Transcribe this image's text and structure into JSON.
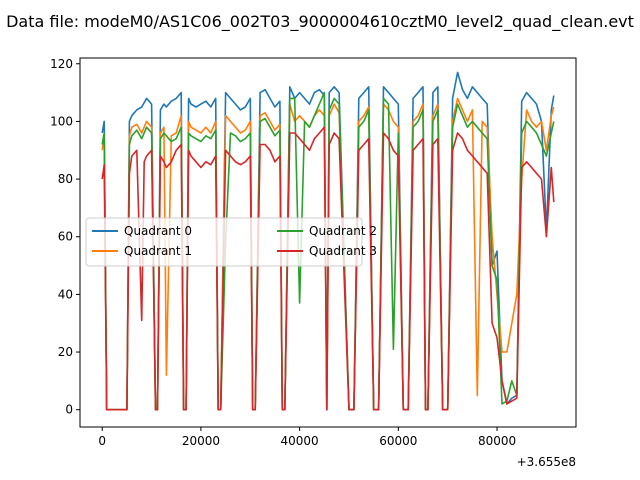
{
  "chart_data": {
    "type": "line",
    "title": "Data file: modeM0/AS1C06_002T03_9000004610cztM0_level2_quad_clean.evt",
    "xlabel": "",
    "ylabel": "",
    "x_offset_label": "+3.655e8",
    "xlim": [
      -4500,
      96000
    ],
    "ylim": [
      -6,
      122
    ],
    "x_ticks": [
      0,
      20000,
      40000,
      60000,
      80000
    ],
    "x_tick_labels": [
      "0",
      "20000",
      "40000",
      "60000",
      "80000"
    ],
    "y_ticks": [
      0,
      20,
      40,
      60,
      80,
      100,
      120
    ],
    "y_tick_labels": [
      "0",
      "20",
      "40",
      "60",
      "80",
      "100",
      "120"
    ],
    "grid": false,
    "legend_position": "center-left",
    "legend_columns": 2,
    "series": [
      {
        "name": "Quadrant 0",
        "color": "#1f77b4",
        "x": [
          0,
          400,
          900,
          5000,
          5500,
          6000,
          7000,
          8000,
          9000,
          10000,
          10800,
          11200,
          11800,
          12500,
          13000,
          14000,
          15000,
          16000,
          16500,
          17000,
          17500,
          18000,
          19000,
          20000,
          21000,
          22000,
          23000,
          23500,
          24000,
          25000,
          26000,
          27000,
          28000,
          29000,
          30000,
          30500,
          31000,
          32000,
          33000,
          34000,
          35000,
          36000,
          36500,
          37000,
          38000,
          39000,
          40000,
          41000,
          42000,
          43000,
          44000,
          45000,
          45500,
          46000,
          47000,
          48000,
          50000,
          51000,
          52000,
          53000,
          54000,
          55000,
          56000,
          57000,
          58000,
          59000,
          60000,
          61000,
          62000,
          63000,
          64000,
          65000,
          65500,
          66000,
          67000,
          68000,
          69000,
          70000,
          71000,
          72000,
          73000,
          74000,
          75000,
          76000,
          77000,
          78000,
          79000,
          80000,
          81000,
          82000,
          83000,
          84000,
          85000,
          86000,
          87000,
          88000,
          89000,
          90000,
          91000,
          91500
        ],
        "y": [
          96,
          100,
          0,
          0,
          100,
          102,
          104,
          105,
          108,
          106,
          0,
          0,
          104,
          106,
          105,
          107,
          108,
          110,
          0,
          0,
          108,
          106,
          105,
          106,
          107,
          105,
          108,
          0,
          0,
          110,
          108,
          106,
          104,
          105,
          108,
          0,
          0,
          110,
          111,
          108,
          105,
          107,
          0,
          0,
          112,
          108,
          110,
          108,
          106,
          110,
          111,
          109,
          0,
          110,
          112,
          110,
          0,
          0,
          108,
          110,
          112,
          0,
          0,
          112,
          110,
          108,
          106,
          0,
          0,
          108,
          110,
          112,
          0,
          0,
          110,
          112,
          0,
          0,
          108,
          117,
          111,
          108,
          112,
          110,
          108,
          106,
          50,
          55,
          10,
          2,
          4,
          5,
          107,
          110,
          108,
          106,
          100,
          62,
          104,
          109
        ]
      },
      {
        "name": "Quadrant 1",
        "color": "#ff7f0e",
        "x": [
          0,
          400,
          900,
          5000,
          5500,
          6000,
          7000,
          8000,
          9000,
          10000,
          10800,
          11200,
          11800,
          12500,
          13000,
          14000,
          15000,
          16000,
          16500,
          17000,
          17500,
          18000,
          19000,
          20000,
          21000,
          22000,
          23000,
          23500,
          24000,
          25000,
          26000,
          27000,
          28000,
          29000,
          30000,
          30500,
          31000,
          32000,
          33000,
          34000,
          35000,
          36000,
          36500,
          37000,
          38000,
          39000,
          40000,
          41000,
          42000,
          43000,
          44000,
          45000,
          45500,
          46000,
          47000,
          48000,
          50000,
          51000,
          52000,
          53000,
          54000,
          55000,
          56000,
          57000,
          58000,
          59000,
          60000,
          61000,
          62000,
          63000,
          64000,
          65000,
          65500,
          66000,
          67000,
          68000,
          69000,
          70000,
          71000,
          72000,
          73000,
          74000,
          75000,
          76000,
          77000,
          78000,
          79000,
          80000,
          81000,
          82000,
          83000,
          84000,
          85000,
          86000,
          87000,
          88000,
          89000,
          90000,
          91000,
          91500
        ],
        "y": [
          90,
          95,
          0,
          0,
          95,
          98,
          99,
          96,
          100,
          98,
          0,
          0,
          96,
          98,
          12,
          95,
          96,
          102,
          0,
          0,
          100,
          98,
          97,
          96,
          98,
          96,
          100,
          0,
          0,
          102,
          100,
          98,
          96,
          97,
          100,
          0,
          0,
          102,
          103,
          100,
          97,
          99,
          0,
          0,
          106,
          100,
          102,
          100,
          98,
          102,
          104,
          102,
          0,
          102,
          106,
          103,
          0,
          0,
          100,
          102,
          105,
          0,
          0,
          106,
          104,
          100,
          98,
          0,
          0,
          100,
          102,
          106,
          0,
          0,
          102,
          106,
          0,
          0,
          100,
          108,
          104,
          100,
          104,
          5,
          100,
          98,
          60,
          40,
          20,
          20,
          30,
          40,
          80,
          104,
          100,
          98,
          100,
          90,
          102,
          105
        ]
      },
      {
        "name": "Quadrant 2",
        "color": "#2ca02c",
        "x": [
          0,
          400,
          900,
          5000,
          5500,
          6000,
          7000,
          8000,
          9000,
          10000,
          10800,
          11200,
          11800,
          12500,
          13000,
          14000,
          15000,
          16000,
          16500,
          17000,
          17500,
          18000,
          19000,
          20000,
          21000,
          22000,
          23000,
          23500,
          24000,
          25000,
          26000,
          27000,
          28000,
          29000,
          30000,
          30500,
          31000,
          32000,
          33000,
          34000,
          35000,
          36000,
          36500,
          37000,
          38000,
          39000,
          40000,
          41000,
          42000,
          43000,
          44000,
          45000,
          45500,
          46000,
          47000,
          48000,
          50000,
          51000,
          52000,
          53000,
          54000,
          55000,
          56000,
          57000,
          58000,
          59000,
          60000,
          61000,
          62000,
          63000,
          64000,
          65000,
          65500,
          66000,
          67000,
          68000,
          69000,
          70000,
          71000,
          72000,
          73000,
          74000,
          75000,
          76000,
          77000,
          78000,
          79000,
          80000,
          81000,
          82000,
          83000,
          84000,
          85000,
          86000,
          87000,
          88000,
          89000,
          90000,
          91000,
          91500
        ],
        "y": [
          92,
          96,
          0,
          0,
          92,
          95,
          97,
          94,
          98,
          96,
          0,
          0,
          94,
          96,
          95,
          93,
          94,
          98,
          0,
          0,
          96,
          95,
          94,
          93,
          95,
          94,
          97,
          0,
          0,
          58,
          96,
          95,
          93,
          94,
          96,
          0,
          0,
          100,
          101,
          98,
          95,
          97,
          0,
          0,
          108,
          108,
          37,
          100,
          98,
          102,
          106,
          110,
          0,
          104,
          108,
          106,
          0,
          0,
          98,
          100,
          104,
          0,
          0,
          108,
          106,
          21,
          96,
          0,
          0,
          98,
          100,
          104,
          0,
          0,
          100,
          104,
          0,
          0,
          98,
          106,
          102,
          98,
          100,
          98,
          96,
          94,
          50,
          45,
          2,
          3,
          10,
          5,
          96,
          100,
          98,
          96,
          92,
          88,
          96,
          100
        ]
      },
      {
        "name": "Quadrant 3",
        "color": "#d62728",
        "x": [
          0,
          400,
          900,
          5000,
          5500,
          6000,
          7000,
          8000,
          8500,
          9000,
          10000,
          10800,
          11200,
          11800,
          12500,
          13000,
          14000,
          15000,
          16000,
          16500,
          17000,
          17500,
          18000,
          19000,
          20000,
          21000,
          22000,
          23000,
          23500,
          24000,
          25000,
          26000,
          27000,
          28000,
          29000,
          30000,
          30500,
          31000,
          32000,
          33000,
          34000,
          35000,
          36000,
          36500,
          37000,
          38000,
          39000,
          40000,
          41000,
          42000,
          43000,
          44000,
          45000,
          45500,
          46000,
          47000,
          48000,
          50000,
          51000,
          52000,
          53000,
          54000,
          55000,
          56000,
          57000,
          58000,
          59000,
          60000,
          61000,
          62000,
          63000,
          64000,
          65000,
          65500,
          66000,
          67000,
          68000,
          69000,
          70000,
          71000,
          72000,
          73000,
          74000,
          75000,
          76000,
          77000,
          78000,
          79000,
          80000,
          81000,
          82000,
          83000,
          84000,
          85000,
          86000,
          87000,
          88000,
          89000,
          90000,
          91000,
          91500
        ],
        "y": [
          80,
          85,
          0,
          0,
          82,
          88,
          90,
          31,
          86,
          88,
          90,
          0,
          0,
          88,
          86,
          84,
          86,
          90,
          92,
          0,
          0,
          90,
          88,
          86,
          84,
          86,
          85,
          88,
          0,
          0,
          90,
          88,
          86,
          85,
          86,
          88,
          0,
          0,
          92,
          92,
          90,
          86,
          88,
          0,
          0,
          96,
          96,
          94,
          92,
          90,
          94,
          96,
          98,
          0,
          92,
          96,
          94,
          0,
          0,
          90,
          92,
          94,
          0,
          0,
          96,
          94,
          90,
          88,
          0,
          0,
          90,
          92,
          94,
          0,
          0,
          92,
          94,
          0,
          0,
          90,
          96,
          94,
          90,
          88,
          86,
          84,
          82,
          30,
          25,
          10,
          2,
          3,
          4,
          84,
          86,
          84,
          82,
          80,
          60,
          84,
          72
        ]
      }
    ]
  }
}
